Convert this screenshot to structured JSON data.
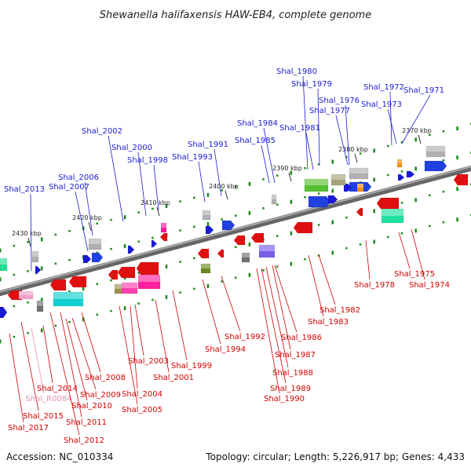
{
  "title": "Shewanella halifaxensis HAW-EB4, complete genome",
  "accession": "Accession: NC_010334",
  "summary": "Topology: circular; Length: 5,226,917 bp; Genes: 4,433",
  "colors": {
    "backbone": "#777777",
    "label_top": "#1a1ad6",
    "label_bottom": "#d40000",
    "label_rna": "#e98fb0",
    "tick": "#1a8a1a"
  },
  "scale_labels": [
    "2370 kbp",
    "2380 kbp",
    "2390 kbp",
    "2400 kbp",
    "2410 kbp",
    "2420 kbp",
    "2430 kbp"
  ],
  "top_genes": [
    "Shal_2013",
    "Shal_2007",
    "Shal_2006",
    "Shal_2002",
    "Shal_2000",
    "Shal_1998",
    "Shal_1993",
    "Shal_1991",
    "Shal_1985",
    "Shal_1984",
    "Shal_1981",
    "Shal_1980",
    "Shal_1979",
    "Shal_1977",
    "Shal_1976",
    "Shal_1973",
    "Shal_1972",
    "Shal_1971"
  ],
  "bottom_genes": [
    "Shal_2017",
    "Shal_2015",
    "Shal_R0084",
    "Shal_2014",
    "Shal_2012",
    "Shal_2011",
    "Shal_2010",
    "Shal_2009",
    "Shal_2008",
    "Shal_2005",
    "Shal_2004",
    "Shal_2003",
    "Shal_2001",
    "Shal_1999",
    "Shal_1994",
    "Shal_1992",
    "Shal_1990",
    "Shal_1989",
    "Shal_1988",
    "Shal_1987",
    "Shal_1986",
    "Shal_1983",
    "Shal_1982",
    "Shal_1978",
    "Shal_1975",
    "Shal_1974"
  ]
}
